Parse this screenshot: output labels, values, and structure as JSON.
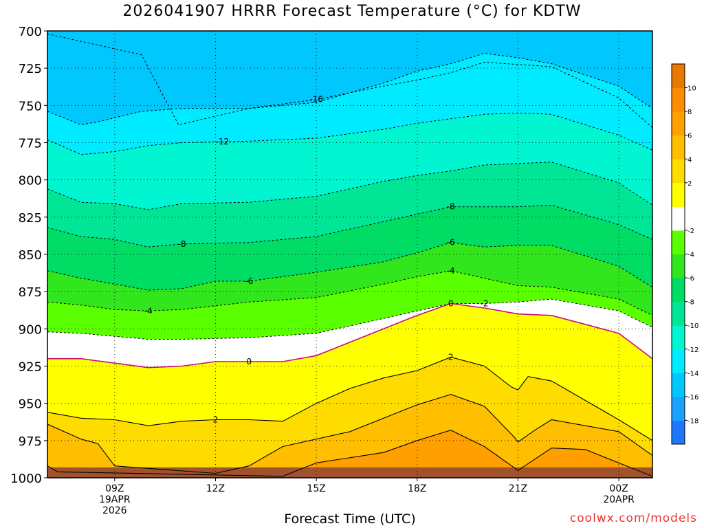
{
  "chart_data": {
    "type": "heatmap",
    "subtype": "filled-contour cross-section (time vs pressure)",
    "title": "2026041907 HRRR Forecast Temperature (°C) for KDTW",
    "xlabel": "Forecast Time (UTC)",
    "ylabel": "",
    "x_ticks": [
      {
        "label": [
          "09Z",
          "19APR",
          "2026"
        ],
        "hour": 9
      },
      {
        "label": [
          "12Z"
        ],
        "hour": 12
      },
      {
        "label": [
          "15Z"
        ],
        "hour": 15
      },
      {
        "label": [
          "18Z"
        ],
        "hour": 18
      },
      {
        "label": [
          "21Z"
        ],
        "hour": 21
      },
      {
        "label": [
          "00Z",
          "20APR"
        ],
        "hour": 24
      }
    ],
    "xlim": [
      7,
      25
    ],
    "y_ticks": [
      700,
      725,
      750,
      775,
      800,
      825,
      850,
      875,
      900,
      925,
      950,
      975,
      1000
    ],
    "ylim": [
      1000,
      700
    ],
    "y_scale": "linear (pressure, hPa, inverted)",
    "grid": true,
    "legend_placement": "right colorbar",
    "colorbar": {
      "levels": [
        -20,
        -18,
        -16,
        -14,
        -12,
        -10,
        -8,
        -6,
        -4,
        -2,
        0,
        2,
        4,
        6,
        8,
        10,
        12
      ],
      "tick_labels": [
        "-18",
        "-16",
        "-14",
        "-12",
        "-10",
        "-8",
        "-6",
        "-4",
        "-2",
        "2",
        "4",
        "6",
        "8",
        "10"
      ],
      "colors": [
        "#1e78ff",
        "#1ea0ff",
        "#00c8ff",
        "#00ebff",
        "#00f5d0",
        "#00e696",
        "#00dc64",
        "#32e61e",
        "#5aff00",
        "#ffffff",
        "#ffff00",
        "#ffdc00",
        "#ffbe00",
        "#ff9f00",
        "#ff8c00",
        "#e87800"
      ]
    },
    "contours": [
      {
        "level": -16,
        "label": "-16",
        "points": [
          [
            7,
            702
          ],
          [
            9.8,
            716
          ],
          [
            10.9,
            763
          ],
          [
            13,
            752
          ],
          [
            15,
            746
          ],
          [
            17,
            737
          ],
          [
            18,
            733
          ],
          [
            19,
            728
          ],
          [
            20,
            721
          ],
          [
            22,
            724
          ],
          [
            24,
            745
          ],
          [
            25,
            765
          ]
        ]
      },
      {
        "level": -14,
        "label": "",
        "points": [
          [
            7,
            754
          ],
          [
            8,
            763
          ],
          [
            8.5,
            761
          ],
          [
            9.8,
            754
          ],
          [
            11,
            752
          ],
          [
            13,
            752
          ],
          [
            15,
            748
          ],
          [
            17,
            735
          ],
          [
            18,
            727
          ],
          [
            19,
            722
          ],
          [
            20,
            715
          ],
          [
            21,
            718
          ],
          [
            22,
            722
          ],
          [
            24,
            737
          ],
          [
            25,
            752
          ]
        ]
      },
      {
        "level": -12,
        "label": "-12",
        "points": [
          [
            7,
            773
          ],
          [
            8,
            783
          ],
          [
            9,
            781
          ],
          [
            10,
            777
          ],
          [
            11,
            775
          ],
          [
            13,
            774
          ],
          [
            15,
            772
          ],
          [
            17,
            766
          ],
          [
            18,
            762
          ],
          [
            19,
            759
          ],
          [
            20,
            756
          ],
          [
            21,
            755
          ],
          [
            22,
            756
          ],
          [
            24,
            770
          ],
          [
            25,
            780
          ]
        ]
      },
      {
        "level": -10,
        "label": "",
        "points": [
          [
            7,
            806
          ],
          [
            8,
            815
          ],
          [
            9,
            816
          ],
          [
            10,
            820
          ],
          [
            11,
            816
          ],
          [
            13,
            815
          ],
          [
            15,
            811
          ],
          [
            17,
            801
          ],
          [
            18,
            797
          ],
          [
            19,
            794
          ],
          [
            20,
            790
          ],
          [
            21,
            789
          ],
          [
            22,
            788
          ],
          [
            24,
            802
          ],
          [
            25,
            817
          ]
        ]
      },
      {
        "level": -8,
        "label": "-8",
        "points": [
          [
            7,
            832
          ],
          [
            8,
            838
          ],
          [
            9,
            840
          ],
          [
            10,
            845
          ],
          [
            11,
            843
          ],
          [
            13,
            842
          ],
          [
            15,
            838
          ],
          [
            17,
            828
          ],
          [
            18,
            823
          ],
          [
            19,
            818
          ],
          [
            20,
            818
          ],
          [
            21,
            818
          ],
          [
            22,
            817
          ],
          [
            24,
            830
          ],
          [
            25,
            840
          ]
        ]
      },
      {
        "level": -6,
        "label": "-6",
        "points": [
          [
            7,
            861
          ],
          [
            8,
            866
          ],
          [
            9,
            870
          ],
          [
            10,
            874
          ],
          [
            11,
            873
          ],
          [
            12,
            868
          ],
          [
            13,
            868
          ],
          [
            15,
            862
          ],
          [
            17,
            855
          ],
          [
            18,
            849
          ],
          [
            19,
            842
          ],
          [
            20,
            845
          ],
          [
            21,
            844
          ],
          [
            22,
            844
          ],
          [
            24,
            858
          ],
          [
            25,
            872
          ]
        ]
      },
      {
        "level": -4,
        "label": "-4",
        "points": [
          [
            7,
            882
          ],
          [
            8,
            884
          ],
          [
            9,
            887
          ],
          [
            10,
            888
          ],
          [
            11,
            887
          ],
          [
            13,
            882
          ],
          [
            15,
            879
          ],
          [
            17,
            870
          ],
          [
            18,
            865
          ],
          [
            19,
            861
          ],
          [
            20,
            866
          ],
          [
            21,
            871
          ],
          [
            22,
            872
          ],
          [
            24,
            880
          ],
          [
            25,
            891
          ]
        ]
      },
      {
        "level": -2,
        "label": "-2",
        "points": [
          [
            7,
            902
          ],
          [
            8,
            903
          ],
          [
            9,
            905
          ],
          [
            10,
            907
          ],
          [
            11,
            907
          ],
          [
            13,
            906
          ],
          [
            15,
            903
          ],
          [
            17,
            893
          ],
          [
            18,
            888
          ],
          [
            19,
            883
          ],
          [
            20,
            883
          ],
          [
            21,
            882
          ],
          [
            22,
            880
          ],
          [
            24,
            888
          ],
          [
            25,
            899
          ]
        ]
      },
      {
        "level": 0,
        "label": "0",
        "points": [
          [
            7,
            920
          ],
          [
            8,
            920
          ],
          [
            9,
            923
          ],
          [
            10,
            926
          ],
          [
            11,
            925
          ],
          [
            12,
            922
          ],
          [
            13,
            922
          ],
          [
            14,
            922
          ],
          [
            15,
            918
          ],
          [
            16,
            909
          ],
          [
            17,
            900
          ],
          [
            18,
            891
          ],
          [
            19,
            883
          ],
          [
            20,
            886
          ],
          [
            21,
            890
          ],
          [
            22,
            891
          ],
          [
            24,
            903
          ],
          [
            25,
            920
          ]
        ]
      },
      {
        "level": 2,
        "label": "2",
        "points": [
          [
            7,
            956
          ],
          [
            8,
            960
          ],
          [
            9,
            961
          ],
          [
            10,
            965
          ],
          [
            11,
            962
          ],
          [
            12,
            961
          ],
          [
            13,
            961
          ],
          [
            14,
            962
          ],
          [
            15,
            950
          ],
          [
            16,
            940
          ],
          [
            17,
            933
          ],
          [
            18,
            928
          ],
          [
            19,
            919
          ],
          [
            20,
            925
          ],
          [
            20.8,
            939
          ],
          [
            21,
            941
          ],
          [
            21.3,
            932
          ],
          [
            22,
            935
          ],
          [
            24,
            961
          ],
          [
            25,
            975
          ]
        ]
      },
      {
        "level": 4,
        "label": "",
        "points": [
          [
            7,
            964
          ],
          [
            8,
            974
          ],
          [
            8.5,
            977
          ],
          [
            9,
            992
          ],
          [
            12,
            997
          ],
          [
            13,
            992
          ],
          [
            14,
            979
          ],
          [
            16,
            969
          ],
          [
            18,
            951
          ],
          [
            19,
            944
          ],
          [
            20,
            952
          ],
          [
            20.9,
            973
          ],
          [
            21,
            976
          ],
          [
            21.5,
            968
          ],
          [
            22,
            961
          ],
          [
            24,
            969
          ],
          [
            25,
            985
          ]
        ]
      },
      {
        "level": 6,
        "label": "",
        "points": [
          [
            7,
            992
          ],
          [
            7.3,
            996
          ],
          [
            14,
            999
          ],
          [
            15,
            990
          ],
          [
            17,
            983
          ],
          [
            18,
            975
          ],
          [
            19,
            968
          ],
          [
            20,
            979
          ],
          [
            21,
            995
          ],
          [
            22,
            980
          ],
          [
            23,
            981
          ],
          [
            25,
            999
          ]
        ]
      }
    ]
  }
}
